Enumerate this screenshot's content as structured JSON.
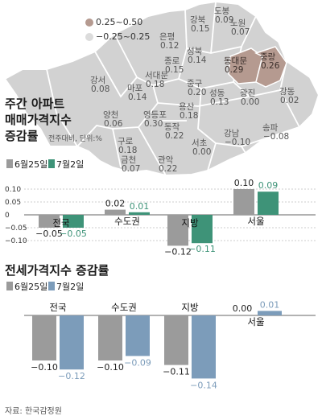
{
  "map": {
    "colors": {
      "high": "#b59a90",
      "low": "#dcdcdc",
      "seoul": "#d2d2d2",
      "gu_text": "#555555"
    },
    "legend": [
      {
        "range": "0.25~0.50",
        "color": "#b59a90"
      },
      {
        "range": "−0.25~0.25",
        "color": "#dcdcdc"
      }
    ],
    "districts": [
      {
        "name": "도봉",
        "value": "0.09"
      },
      {
        "name": "강북",
        "value": "0.15"
      },
      {
        "name": "노원",
        "value": "0.07"
      },
      {
        "name": "은평",
        "value": "0.12"
      },
      {
        "name": "성북",
        "value": "0.14"
      },
      {
        "name": "종로",
        "value": "0.15"
      },
      {
        "name": "동대문",
        "value": "0.29"
      },
      {
        "name": "중랑",
        "value": "0.26"
      },
      {
        "name": "강서",
        "value": "0.08"
      },
      {
        "name": "서대문",
        "value": "0.18"
      },
      {
        "name": "마포",
        "value": "0.14"
      },
      {
        "name": "중구",
        "value": "0.20"
      },
      {
        "name": "성동",
        "value": "0.13"
      },
      {
        "name": "광진",
        "value": "0.00"
      },
      {
        "name": "강동",
        "value": "0.02"
      },
      {
        "name": "양천",
        "value": "0.06"
      },
      {
        "name": "영등포",
        "value": "0.30"
      },
      {
        "name": "용산",
        "value": "0.18"
      },
      {
        "name": "구로",
        "value": "0.18"
      },
      {
        "name": "동작",
        "value": "0.22"
      },
      {
        "name": "강남",
        "value": "−0.10"
      },
      {
        "name": "송파",
        "value": "−0.08"
      },
      {
        "name": "서초",
        "value": "0.00"
      },
      {
        "name": "금천",
        "value": "0.07"
      },
      {
        "name": "관악",
        "value": "0.22"
      }
    ]
  },
  "chart1": {
    "title_line1": "주간 아파트",
    "title_line2": "매매가격지수",
    "title_line3": "증감률",
    "unit": "전주대비, 단위:%"
  },
  "chart2": {
    "title": "전세가격지수 증감률"
  },
  "legend": {
    "week1": "6월25일",
    "week2": "7월2일"
  },
  "source": "자료: 한국감정원",
  "chart_data": [
    {
      "type": "bar",
      "title": "주간 아파트 매매가격지수 증감률",
      "subtitle": "전주대비, 단위:%",
      "categories": [
        "전국",
        "수도권",
        "지방",
        "서울"
      ],
      "series": [
        {
          "name": "6월25일",
          "values": [
            -0.05,
            0.02,
            -0.12,
            0.1
          ],
          "labels": [
            "−0.05",
            "0.02",
            "−0.12",
            "0.10"
          ],
          "color": "#9b9b9b"
        },
        {
          "name": "7월2일",
          "values": [
            -0.05,
            0.01,
            -0.11,
            0.09
          ],
          "labels": [
            "−0.05",
            "0.01",
            "−0.11",
            "0.09"
          ],
          "color": "#3e9378"
        }
      ],
      "yticks": [
        "0.10",
        "0.05",
        "0",
        "−0.05",
        "−0.10"
      ],
      "ylim": [
        -0.13,
        0.12
      ],
      "grid": true,
      "legend": "top-left"
    },
    {
      "type": "bar",
      "title": "전세가격지수 증감률",
      "categories": [
        "전국",
        "수도권",
        "지방",
        "서울"
      ],
      "series": [
        {
          "name": "6월25일",
          "values": [
            -0.1,
            -0.1,
            -0.11,
            0.0
          ],
          "labels": [
            "−0.10",
            "−0.10",
            "−0.11",
            "0.00"
          ],
          "color": "#9b9b9b"
        },
        {
          "name": "7월2일",
          "values": [
            -0.12,
            -0.09,
            -0.14,
            0.01
          ],
          "labels": [
            "−0.12",
            "−0.09",
            "−0.14",
            "0.01"
          ],
          "color": "#7c9cba"
        }
      ],
      "ylim": [
        -0.15,
        0.02
      ],
      "legend": "top-left"
    }
  ]
}
